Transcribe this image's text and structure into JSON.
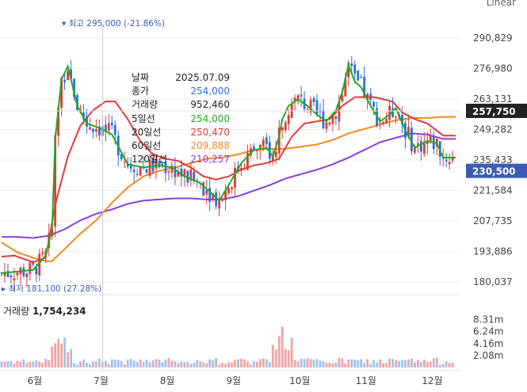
{
  "scale_mode": "Linear",
  "high_marker": {
    "label": "최고",
    "price": "295,000",
    "change": "(-21.86%)"
  },
  "low_marker": {
    "label": "최저",
    "price": "181,100",
    "change": "(27.28%)"
  },
  "tooltip": {
    "rows": [
      {
        "key": "날짜",
        "value": "2025.07.09",
        "color": "#222222"
      },
      {
        "key": "종가",
        "value": "254,000",
        "color": "#2a6fdb"
      },
      {
        "key": "거래량",
        "value": "952,460",
        "color": "#222222"
      },
      {
        "key": "5일선",
        "value": "254,000",
        "color": "#22aa22"
      },
      {
        "key": "20일선",
        "value": "250,470",
        "color": "#e03a3a"
      },
      {
        "key": "60일선",
        "value": "209,888",
        "color": "#f08a24"
      },
      {
        "key": "120일선",
        "value": "210,257",
        "color": "#8a3ee0"
      }
    ]
  },
  "volume": {
    "label": "거래량",
    "value": "1,754,234"
  },
  "price_badges": {
    "upper": {
      "text": "257,750",
      "bg": "#222222"
    },
    "current": {
      "text": "230,500",
      "bg": "#3b5bb5"
    }
  },
  "colors": {
    "up": "#e03a3a",
    "down": "#2a6fdb",
    "ma5": "#22aa22",
    "ma20": "#e03a3a",
    "ma60": "#f08a24",
    "ma120": "#8a3ee0",
    "grid": "#eeeeee"
  },
  "chart_data": {
    "type": "candlestick",
    "price_ticks": [
      "290,829",
      "276,980",
      "263,131",
      "249,282",
      "235,433",
      "221,584",
      "207,735",
      "193,886",
      "180,037"
    ],
    "price_tick_values": [
      290829,
      276980,
      263131,
      249282,
      235433,
      221584,
      207735,
      193886,
      180037
    ],
    "volume_ticks": [
      "8.31m",
      "6.24m",
      "4.16m",
      "2.08m"
    ],
    "volume_tick_values": [
      8.31,
      6.24,
      4.16,
      2.08
    ],
    "month_labels": [
      "6월",
      "7월",
      "8월",
      "9월",
      "10월",
      "11월",
      "12월"
    ],
    "month_index": [
      4,
      25,
      46,
      67,
      88,
      109,
      130
    ],
    "price_range": [
      177000,
      302000
    ],
    "volume_range": [
      0,
      9.5
    ],
    "hover_index": 32,
    "series": [
      {
        "name": "5일선",
        "anchors": [
          [
            0,
            184000
          ],
          [
            10,
            185500
          ],
          [
            14,
            192000
          ],
          [
            16,
            204000
          ],
          [
            17,
            245000
          ],
          [
            19,
            272000
          ],
          [
            21,
            278000
          ],
          [
            24,
            260000
          ],
          [
            27,
            252000
          ],
          [
            31,
            250000
          ],
          [
            35,
            247000
          ],
          [
            40,
            233500
          ],
          [
            45,
            232000
          ],
          [
            50,
            233000
          ],
          [
            54,
            232000
          ],
          [
            58,
            228000
          ],
          [
            63,
            225000
          ],
          [
            66,
            221000
          ],
          [
            69,
            217000
          ],
          [
            72,
            224000
          ],
          [
            76,
            234000
          ],
          [
            80,
            240000
          ],
          [
            84,
            241000
          ],
          [
            86,
            237000
          ],
          [
            88,
            246000
          ],
          [
            89,
            254000
          ],
          [
            91,
            260000
          ],
          [
            94,
            263000
          ],
          [
            97,
            260000
          ],
          [
            100,
            256000
          ],
          [
            103,
            253000
          ],
          [
            106,
            258000
          ],
          [
            108,
            266000
          ],
          [
            110,
            278500
          ],
          [
            112,
            271000
          ],
          [
            114,
            268500
          ],
          [
            117,
            260000
          ],
          [
            120,
            253000
          ],
          [
            123,
            256000
          ],
          [
            125,
            259000
          ],
          [
            128,
            249000
          ],
          [
            131,
            241000
          ],
          [
            135,
            244000
          ],
          [
            138,
            243000
          ],
          [
            140,
            236500
          ]
        ]
      },
      {
        "name": "20일선",
        "anchors": [
          [
            0,
            191500
          ],
          [
            4,
            192000
          ],
          [
            10,
            189000
          ],
          [
            14,
            191000
          ],
          [
            17,
            215000
          ],
          [
            21,
            237000
          ],
          [
            25,
            251000
          ],
          [
            29,
            258000
          ],
          [
            33,
            262000
          ],
          [
            36,
            262000
          ],
          [
            40,
            254000
          ],
          [
            44,
            244000
          ],
          [
            48,
            238000
          ],
          [
            52,
            236000
          ],
          [
            56,
            235000
          ],
          [
            60,
            232000
          ],
          [
            64,
            228000
          ],
          [
            68,
            226500
          ],
          [
            72,
            228000
          ],
          [
            76,
            231000
          ],
          [
            80,
            233000
          ],
          [
            84,
            234000
          ],
          [
            88,
            236000
          ],
          [
            92,
            246000
          ],
          [
            96,
            252000
          ],
          [
            100,
            253000
          ],
          [
            104,
            254000
          ],
          [
            108,
            260000
          ],
          [
            112,
            264000
          ],
          [
            115,
            264000
          ],
          [
            118,
            264000
          ],
          [
            121,
            263000
          ],
          [
            124,
            262000
          ],
          [
            127,
            257000
          ],
          [
            131,
            254000
          ],
          [
            135,
            252000
          ],
          [
            140,
            246500
          ]
        ]
      },
      {
        "name": "60일선",
        "anchors": [
          [
            0,
            198000
          ],
          [
            5,
            193500
          ],
          [
            10,
            191000
          ],
          [
            14,
            189500
          ],
          [
            16,
            189500
          ],
          [
            20,
            195000
          ],
          [
            25,
            202000
          ],
          [
            30,
            208000
          ],
          [
            35,
            216000
          ],
          [
            40,
            223000
          ],
          [
            45,
            228000
          ],
          [
            50,
            230500
          ],
          [
            55,
            232000
          ],
          [
            60,
            234000
          ],
          [
            65,
            236000
          ],
          [
            70,
            236500
          ],
          [
            75,
            238000
          ],
          [
            80,
            240000
          ],
          [
            85,
            240500
          ],
          [
            90,
            240500
          ],
          [
            95,
            241500
          ],
          [
            100,
            242500
          ],
          [
            105,
            244500
          ],
          [
            110,
            247500
          ],
          [
            115,
            249500
          ],
          [
            120,
            251500
          ],
          [
            125,
            253500
          ],
          [
            130,
            254500
          ],
          [
            135,
            254500
          ],
          [
            140,
            255000
          ]
        ]
      },
      {
        "name": "120일선",
        "anchors": [
          [
            0,
            200500
          ],
          [
            5,
            200500
          ],
          [
            10,
            200000
          ],
          [
            15,
            201000
          ],
          [
            20,
            204000
          ],
          [
            25,
            208000
          ],
          [
            30,
            211000
          ],
          [
            35,
            213000
          ],
          [
            40,
            215500
          ],
          [
            45,
            217000
          ],
          [
            50,
            217500
          ],
          [
            55,
            218000
          ],
          [
            60,
            218000
          ],
          [
            65,
            217500
          ],
          [
            70,
            217500
          ],
          [
            75,
            219000
          ],
          [
            80,
            221500
          ],
          [
            85,
            224000
          ],
          [
            90,
            227000
          ],
          [
            95,
            229000
          ],
          [
            100,
            231000
          ],
          [
            105,
            233500
          ],
          [
            110,
            236500
          ],
          [
            115,
            240000
          ],
          [
            120,
            243500
          ],
          [
            125,
            245500
          ],
          [
            130,
            247500
          ],
          [
            135,
            247000
          ],
          [
            140,
            245000
          ]
        ]
      }
    ]
  }
}
